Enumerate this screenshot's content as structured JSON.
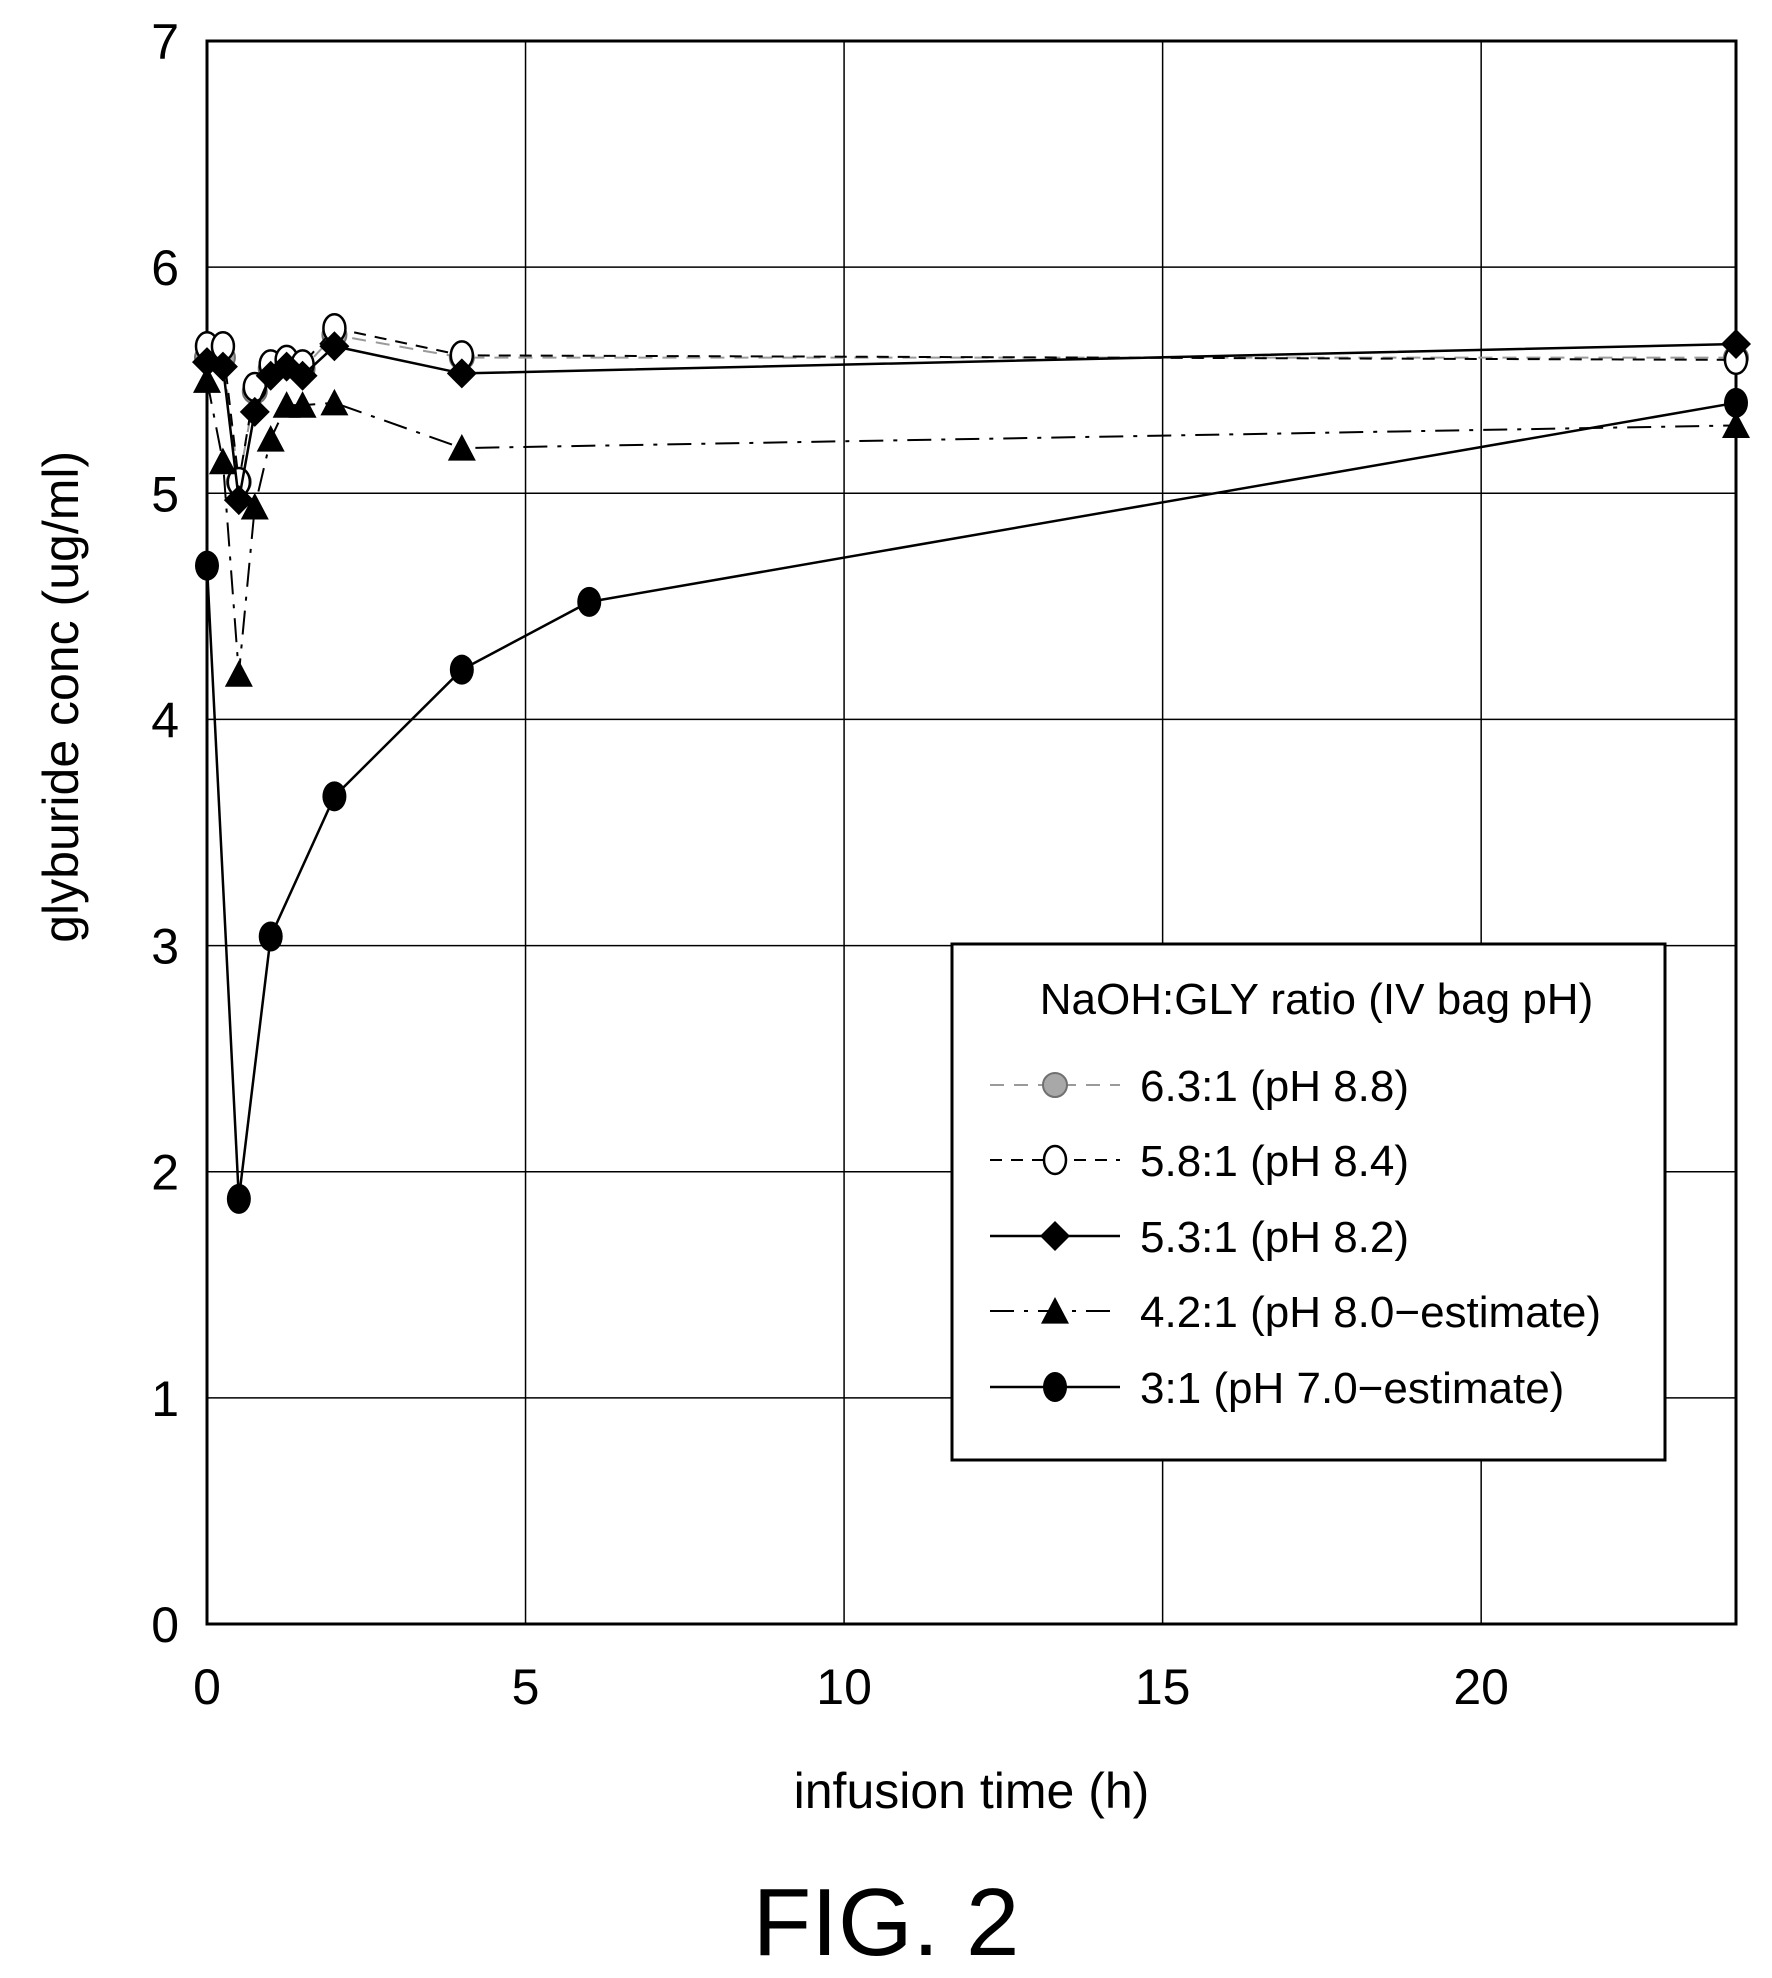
{
  "caption": "FIG. 2",
  "chart_data": {
    "type": "line",
    "xlabel": "infusion time (h)",
    "ylabel": "glyburide conc (ug/ml)",
    "xlim": [
      0,
      24
    ],
    "ylim": [
      0,
      7
    ],
    "xticks": [
      0,
      5,
      10,
      15,
      20
    ],
    "yticks": [
      0,
      1,
      2,
      3,
      4,
      5,
      6,
      7
    ],
    "grid": true,
    "legend": {
      "title": "NaOH:GLY ratio (IV bag pH)",
      "placement": "center-right"
    },
    "series": [
      {
        "name": "6.3:1 (pH 8.8)",
        "marker": "circle-gray",
        "line": "dashed-gray",
        "x": [
          0,
          0.25,
          0.5,
          0.75,
          1,
          1.25,
          1.5,
          2,
          4,
          24
        ],
        "y": [
          5.6,
          5.6,
          5.05,
          5.45,
          5.55,
          5.58,
          5.55,
          5.7,
          5.6,
          5.6
        ]
      },
      {
        "name": "5.8:1 (pH 8.4)",
        "marker": "circle-open",
        "line": "dashed",
        "x": [
          0,
          0.25,
          0.5,
          0.75,
          1,
          1.25,
          1.5,
          2,
          4,
          24
        ],
        "y": [
          5.65,
          5.65,
          5.05,
          5.47,
          5.57,
          5.59,
          5.57,
          5.73,
          5.61,
          5.59
        ]
      },
      {
        "name": "5.3:1 (pH 8.2)",
        "marker": "diamond",
        "line": "solid",
        "x": [
          0,
          0.25,
          0.5,
          0.75,
          1,
          1.25,
          1.5,
          2,
          4,
          24
        ],
        "y": [
          5.58,
          5.56,
          4.97,
          5.36,
          5.52,
          5.56,
          5.52,
          5.65,
          5.53,
          5.66
        ]
      },
      {
        "name": "4.2:1 (pH 8.0−estimate)",
        "marker": "triangle",
        "line": "dashdot",
        "x": [
          0,
          0.25,
          0.5,
          0.75,
          1,
          1.25,
          1.5,
          2,
          4,
          24
        ],
        "y": [
          5.5,
          5.14,
          4.2,
          4.94,
          5.24,
          5.39,
          5.39,
          5.4,
          5.2,
          5.3
        ]
      },
      {
        "name": "3:1 (pH 7.0−estimate)",
        "marker": "circle-filled",
        "line": "solid",
        "x": [
          0,
          0.5,
          1,
          2,
          4,
          6,
          24
        ],
        "y": [
          4.68,
          1.88,
          3.04,
          3.66,
          4.22,
          4.52,
          5.4
        ]
      }
    ]
  }
}
